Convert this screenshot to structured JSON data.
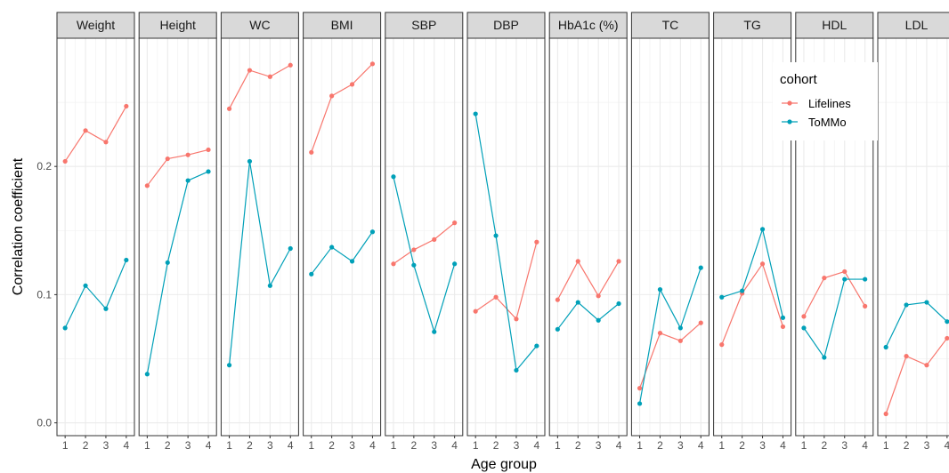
{
  "chart_data": {
    "type": "line",
    "xlabel": "Age group",
    "ylabel": "Correlation coefficient",
    "x": [
      1,
      2,
      3,
      4
    ],
    "x_tick_labels": [
      "1",
      "2",
      "3",
      "4"
    ],
    "ylim": [
      -0.01,
      0.3
    ],
    "y_ticks": [
      0.0,
      0.1,
      0.2
    ],
    "y_tick_labels": [
      "0.0",
      "0.1",
      "0.2"
    ],
    "grid": true,
    "legend": {
      "title": "cohort",
      "placement": "top-right"
    },
    "series_styles": [
      {
        "name": "Lifelines",
        "color": "#F8766D"
      },
      {
        "name": "ToMMo",
        "color": "#00A0B8"
      }
    ],
    "panels": [
      {
        "title": "Weight",
        "series": [
          {
            "name": "Lifelines",
            "values": [
              0.204,
              0.228,
              0.219,
              0.247
            ]
          },
          {
            "name": "ToMMo",
            "values": [
              0.074,
              0.107,
              0.089,
              0.127
            ]
          }
        ]
      },
      {
        "title": "Height",
        "series": [
          {
            "name": "Lifelines",
            "values": [
              0.185,
              0.206,
              0.209,
              0.213
            ]
          },
          {
            "name": "ToMMo",
            "values": [
              0.038,
              0.125,
              0.189,
              0.196
            ]
          }
        ]
      },
      {
        "title": "WC",
        "series": [
          {
            "name": "Lifelines",
            "values": [
              0.245,
              0.275,
              0.27,
              0.279
            ]
          },
          {
            "name": "ToMMo",
            "values": [
              0.045,
              0.204,
              0.107,
              0.136
            ]
          }
        ]
      },
      {
        "title": "BMI",
        "series": [
          {
            "name": "Lifelines",
            "values": [
              0.211,
              0.255,
              0.264,
              0.28
            ]
          },
          {
            "name": "ToMMo",
            "values": [
              0.116,
              0.137,
              0.126,
              0.149
            ]
          }
        ]
      },
      {
        "title": "SBP",
        "series": [
          {
            "name": "Lifelines",
            "values": [
              0.124,
              0.135,
              0.143,
              0.156
            ]
          },
          {
            "name": "ToMMo",
            "values": [
              0.192,
              0.123,
              0.071,
              0.124
            ]
          }
        ]
      },
      {
        "title": "DBP",
        "series": [
          {
            "name": "Lifelines",
            "values": [
              0.087,
              0.098,
              0.081,
              0.141
            ]
          },
          {
            "name": "ToMMo",
            "values": [
              0.241,
              0.146,
              0.041,
              0.06
            ]
          }
        ]
      },
      {
        "title": "HbA1c (%)",
        "series": [
          {
            "name": "Lifelines",
            "values": [
              0.096,
              0.126,
              0.099,
              0.126
            ]
          },
          {
            "name": "ToMMo",
            "values": [
              0.073,
              0.094,
              0.08,
              0.093
            ]
          }
        ]
      },
      {
        "title": "TC",
        "series": [
          {
            "name": "Lifelines",
            "values": [
              0.027,
              0.07,
              0.064,
              0.078
            ]
          },
          {
            "name": "ToMMo",
            "values": [
              0.015,
              0.104,
              0.074,
              0.121
            ]
          }
        ]
      },
      {
        "title": "TG",
        "series": [
          {
            "name": "Lifelines",
            "values": [
              0.061,
              0.101,
              0.124,
              0.075
            ]
          },
          {
            "name": "ToMMo",
            "values": [
              0.098,
              0.103,
              0.151,
              0.082
            ]
          }
        ]
      },
      {
        "title": "HDL",
        "series": [
          {
            "name": "Lifelines",
            "values": [
              0.083,
              0.113,
              0.118,
              0.091
            ]
          },
          {
            "name": "ToMMo",
            "values": [
              0.074,
              0.051,
              0.112,
              0.112
            ]
          }
        ]
      },
      {
        "title": "LDL",
        "series": [
          {
            "name": "Lifelines",
            "values": [
              0.007,
              0.052,
              0.045,
              0.066
            ]
          },
          {
            "name": "ToMMo",
            "values": [
              0.059,
              0.092,
              0.094,
              0.079
            ]
          }
        ]
      }
    ]
  }
}
